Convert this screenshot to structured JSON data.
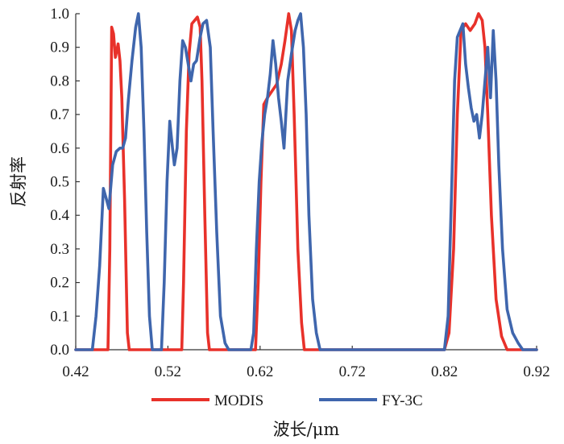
{
  "chart_data": {
    "type": "line",
    "xlabel": "波长/μm",
    "ylabel": "反射率",
    "xlim": [
      0.42,
      0.92
    ],
    "ylim": [
      0.0,
      1.0
    ],
    "x_ticks": [
      "0.42",
      "0.52",
      "0.62",
      "0.72",
      "0.82",
      "0.92"
    ],
    "y_ticks": [
      "0.0",
      "0.1",
      "0.2",
      "0.3",
      "0.4",
      "0.5",
      "0.6",
      "0.7",
      "0.8",
      "0.9",
      "1.0"
    ],
    "legend_position": "bottom",
    "series": [
      {
        "name": "MODIS",
        "color": "#e8312a",
        "points": [
          [
            0.42,
            0.0
          ],
          [
            0.455,
            0.0
          ],
          [
            0.457,
            0.3
          ],
          [
            0.459,
            0.96
          ],
          [
            0.461,
            0.94
          ],
          [
            0.463,
            0.87
          ],
          [
            0.466,
            0.91
          ],
          [
            0.468,
            0.86
          ],
          [
            0.47,
            0.75
          ],
          [
            0.473,
            0.45
          ],
          [
            0.476,
            0.05
          ],
          [
            0.478,
            0.0
          ],
          [
            0.535,
            0.0
          ],
          [
            0.537,
            0.2
          ],
          [
            0.54,
            0.65
          ],
          [
            0.543,
            0.88
          ],
          [
            0.546,
            0.97
          ],
          [
            0.549,
            0.98
          ],
          [
            0.552,
            0.99
          ],
          [
            0.555,
            0.96
          ],
          [
            0.557,
            0.8
          ],
          [
            0.56,
            0.4
          ],
          [
            0.563,
            0.05
          ],
          [
            0.565,
            0.0
          ],
          [
            0.615,
            0.0
          ],
          [
            0.618,
            0.2
          ],
          [
            0.621,
            0.5
          ],
          [
            0.624,
            0.73
          ],
          [
            0.628,
            0.75
          ],
          [
            0.633,
            0.77
          ],
          [
            0.638,
            0.79
          ],
          [
            0.643,
            0.85
          ],
          [
            0.647,
            0.92
          ],
          [
            0.651,
            1.0
          ],
          [
            0.654,
            0.95
          ],
          [
            0.657,
            0.7
          ],
          [
            0.661,
            0.3
          ],
          [
            0.665,
            0.08
          ],
          [
            0.668,
            0.0
          ],
          [
            0.82,
            0.0
          ],
          [
            0.825,
            0.05
          ],
          [
            0.83,
            0.3
          ],
          [
            0.834,
            0.7
          ],
          [
            0.838,
            0.95
          ],
          [
            0.843,
            0.97
          ],
          [
            0.848,
            0.95
          ],
          [
            0.853,
            0.97
          ],
          [
            0.857,
            1.0
          ],
          [
            0.861,
            0.98
          ],
          [
            0.864,
            0.9
          ],
          [
            0.867,
            0.7
          ],
          [
            0.871,
            0.4
          ],
          [
            0.876,
            0.15
          ],
          [
            0.882,
            0.04
          ],
          [
            0.888,
            0.0
          ],
          [
            0.92,
            0.0
          ]
        ]
      },
      {
        "name": "FY-3C",
        "color": "#3f66ad",
        "points": [
          [
            0.42,
            0.0
          ],
          [
            0.438,
            0.0
          ],
          [
            0.442,
            0.1
          ],
          [
            0.446,
            0.25
          ],
          [
            0.45,
            0.48
          ],
          [
            0.453,
            0.45
          ],
          [
            0.456,
            0.42
          ],
          [
            0.46,
            0.55
          ],
          [
            0.464,
            0.59
          ],
          [
            0.468,
            0.6
          ],
          [
            0.471,
            0.6
          ],
          [
            0.474,
            0.63
          ],
          [
            0.477,
            0.74
          ],
          [
            0.481,
            0.86
          ],
          [
            0.485,
            0.96
          ],
          [
            0.488,
            1.0
          ],
          [
            0.491,
            0.9
          ],
          [
            0.494,
            0.65
          ],
          [
            0.497,
            0.35
          ],
          [
            0.5,
            0.1
          ],
          [
            0.503,
            0.0
          ],
          [
            0.513,
            0.0
          ],
          [
            0.516,
            0.2
          ],
          [
            0.519,
            0.5
          ],
          [
            0.522,
            0.68
          ],
          [
            0.525,
            0.6
          ],
          [
            0.527,
            0.55
          ],
          [
            0.53,
            0.6
          ],
          [
            0.533,
            0.8
          ],
          [
            0.536,
            0.92
          ],
          [
            0.539,
            0.9
          ],
          [
            0.542,
            0.85
          ],
          [
            0.545,
            0.8
          ],
          [
            0.548,
            0.85
          ],
          [
            0.551,
            0.86
          ],
          [
            0.555,
            0.93
          ],
          [
            0.558,
            0.97
          ],
          [
            0.562,
            0.98
          ],
          [
            0.566,
            0.9
          ],
          [
            0.569,
            0.65
          ],
          [
            0.573,
            0.35
          ],
          [
            0.577,
            0.1
          ],
          [
            0.582,
            0.02
          ],
          [
            0.586,
            0.0
          ],
          [
            0.61,
            0.0
          ],
          [
            0.613,
            0.05
          ],
          [
            0.616,
            0.3
          ],
          [
            0.619,
            0.5
          ],
          [
            0.622,
            0.62
          ],
          [
            0.625,
            0.7
          ],
          [
            0.628,
            0.75
          ],
          [
            0.631,
            0.82
          ],
          [
            0.634,
            0.92
          ],
          [
            0.637,
            0.85
          ],
          [
            0.64,
            0.75
          ],
          [
            0.643,
            0.68
          ],
          [
            0.646,
            0.6
          ],
          [
            0.65,
            0.8
          ],
          [
            0.654,
            0.88
          ],
          [
            0.658,
            0.95
          ],
          [
            0.661,
            0.98
          ],
          [
            0.664,
            1.0
          ],
          [
            0.667,
            0.9
          ],
          [
            0.67,
            0.7
          ],
          [
            0.673,
            0.4
          ],
          [
            0.677,
            0.15
          ],
          [
            0.681,
            0.05
          ],
          [
            0.685,
            0.0
          ],
          [
            0.81,
            0.0
          ],
          [
            0.82,
            0.0
          ],
          [
            0.824,
            0.1
          ],
          [
            0.828,
            0.5
          ],
          [
            0.831,
            0.8
          ],
          [
            0.834,
            0.93
          ],
          [
            0.837,
            0.95
          ],
          [
            0.84,
            0.97
          ],
          [
            0.843,
            0.85
          ],
          [
            0.846,
            0.78
          ],
          [
            0.849,
            0.72
          ],
          [
            0.852,
            0.68
          ],
          [
            0.855,
            0.7
          ],
          [
            0.858,
            0.63
          ],
          [
            0.861,
            0.7
          ],
          [
            0.864,
            0.8
          ],
          [
            0.867,
            0.9
          ],
          [
            0.87,
            0.75
          ],
          [
            0.873,
            0.95
          ],
          [
            0.876,
            0.8
          ],
          [
            0.879,
            0.55
          ],
          [
            0.883,
            0.3
          ],
          [
            0.888,
            0.12
          ],
          [
            0.894,
            0.05
          ],
          [
            0.9,
            0.02
          ],
          [
            0.905,
            0.0
          ],
          [
            0.92,
            0.0
          ]
        ]
      }
    ]
  }
}
